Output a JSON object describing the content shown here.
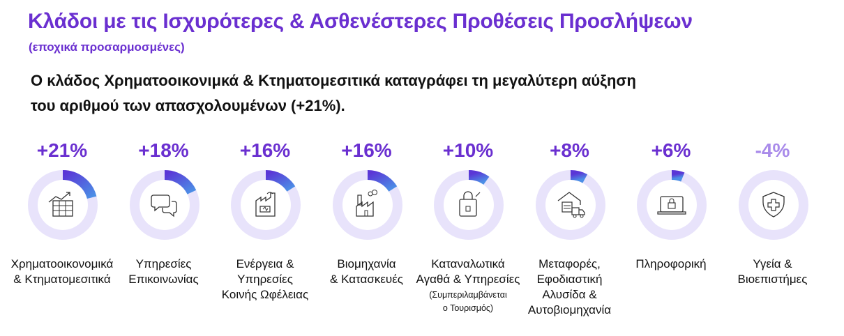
{
  "title": "Κλάδοι με τις Ισχυρότερες & Ασθενέστερες Προθέσεις Προσλήψεων",
  "subtitle": "(εποχικά προσαρμοσμένες)",
  "headline": {
    "line1": "Ο κλάδος Χρηματοοικονιμκά & Κτηματομεσιτικά καταγράφει τη μεγαλύτερη αύξηση",
    "line2": "του αριθμού των απασχολουμένων (+21%)."
  },
  "colors": {
    "accent": "#6a2fd0",
    "ring_bg": "#e8e3fb",
    "arc_dark": "#5a36d6",
    "arc_light": "#4c8fe6",
    "negative": "#a98bea"
  },
  "chart_data": {
    "type": "donut",
    "categories": [
      "Χρηματοοικονομικά & Κτηματομεσιτικά",
      "Υπηρεσίες Επικοινωνίας",
      "Ενέργεια & Υπηρεσίες Κοινής Ωφέλειας",
      "Βιομηχανία & Κατασκευές",
      "Καταναλωτικά Αγαθά & Υπηρεσίες",
      "Μεταφορές, Εφοδιαστική Αλυσίδα & Αυτοβιομηχανία",
      "Πληροφορική",
      "Υγεία & Βιοεπιστήμες"
    ],
    "values": [
      21,
      18,
      16,
      16,
      10,
      8,
      6,
      -4
    ],
    "unit": "%",
    "items": [
      {
        "value_label": "+21%",
        "value": 21,
        "icon": "chart-table-icon",
        "label_lines": [
          "Χρηματοοικονομικά",
          "& Κτηματομεσιτικά"
        ]
      },
      {
        "value_label": "+18%",
        "value": 18,
        "icon": "chat-bubbles-icon",
        "label_lines": [
          "Υπηρεσίες",
          "Επικοινωνίας"
        ]
      },
      {
        "value_label": "+16%",
        "value": 16,
        "icon": "energy-battery-icon",
        "label_lines": [
          "Ενέργεια &",
          "Υπηρεσίες",
          "Κοινής Ωφέλειας"
        ]
      },
      {
        "value_label": "+16%",
        "value": 16,
        "icon": "factory-icon",
        "label_lines": [
          "Βιομηχανία",
          "& Κατασκευές"
        ]
      },
      {
        "value_label": "+10%",
        "value": 10,
        "icon": "shopping-bag-icon",
        "label_lines": [
          "Καταναλωτικά",
          "Αγαθά & Υπηρεσίες"
        ],
        "note_lines": [
          "(Συμπεριλαμβάνεται",
          "ο Τουρισμός)"
        ]
      },
      {
        "value_label": "+8%",
        "value": 8,
        "icon": "warehouse-truck-icon",
        "label_lines": [
          "Μεταφορές,",
          "Εφοδιαστική",
          "Αλυσίδα &",
          "Αυτοβιομηχανία"
        ]
      },
      {
        "value_label": "+6%",
        "value": 6,
        "icon": "laptop-lock-icon",
        "label_lines": [
          "Πληροφορική"
        ]
      },
      {
        "value_label": "-4%",
        "value": -4,
        "icon": "health-shield-icon",
        "label_lines": [
          "Υγεία &",
          "Βιοεπιστήμες"
        ]
      }
    ]
  }
}
